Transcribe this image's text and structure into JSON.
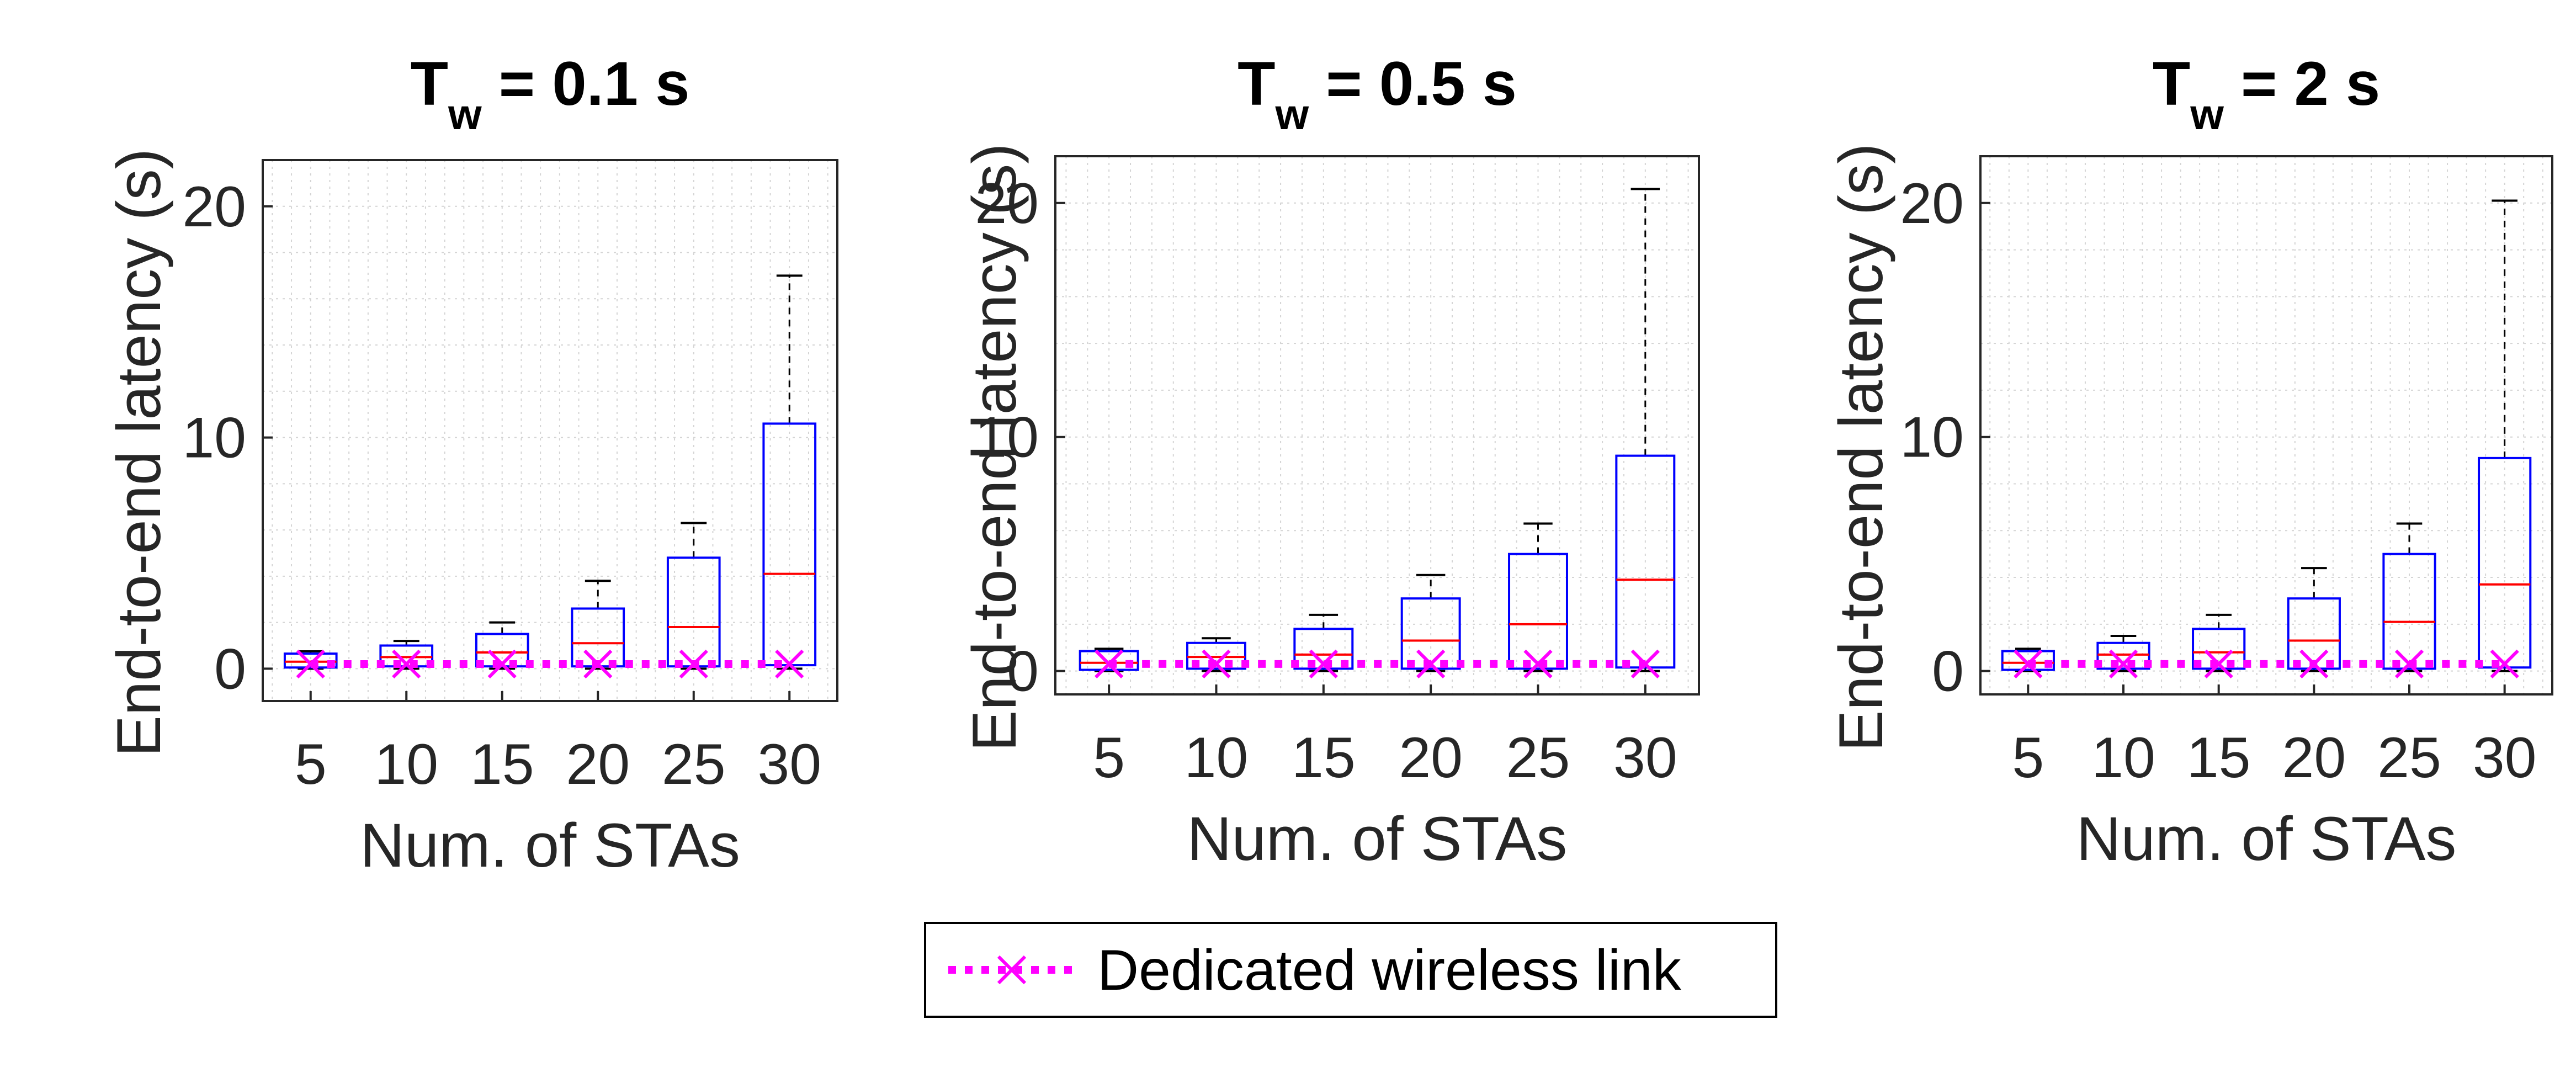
{
  "chart_data": [
    {
      "type": "box",
      "title_main": "T",
      "title_sub": "w",
      "title_rest": " = 0.1 s",
      "xlabel": "Num. of STAs",
      "ylabel": "End-to-end latency (s)",
      "categories": [
        "5",
        "10",
        "15",
        "20",
        "25",
        "30"
      ],
      "yticks": [
        "0",
        "10",
        "20"
      ],
      "ylim": [
        -1.4,
        22
      ],
      "grid": true,
      "boxes": [
        {
          "whisker_low": 0.0,
          "q1": 0.05,
          "median": 0.3,
          "q3": 0.65,
          "whisker_high": 0.75
        },
        {
          "whisker_low": 0.0,
          "q1": 0.1,
          "median": 0.5,
          "q3": 1.0,
          "whisker_high": 1.2
        },
        {
          "whisker_low": 0.0,
          "q1": 0.1,
          "median": 0.7,
          "q3": 1.5,
          "whisker_high": 2.0
        },
        {
          "whisker_low": 0.0,
          "q1": 0.1,
          "median": 1.1,
          "q3": 2.6,
          "whisker_high": 3.8
        },
        {
          "whisker_low": 0.0,
          "q1": 0.1,
          "median": 1.8,
          "q3": 4.8,
          "whisker_high": 6.3
        },
        {
          "whisker_low": 0.0,
          "q1": 0.15,
          "median": 4.1,
          "q3": 10.6,
          "whisker_high": 17.0
        }
      ],
      "dedicated_link": [
        0.2,
        0.2,
        0.2,
        0.2,
        0.2,
        0.2
      ]
    },
    {
      "type": "box",
      "title_main": "T",
      "title_sub": "w",
      "title_rest": " = 0.5 s",
      "xlabel": "Num. of STAs",
      "ylabel": "End-to-end latency (s)",
      "categories": [
        "5",
        "10",
        "15",
        "20",
        "25",
        "30"
      ],
      "yticks": [
        "0",
        "10",
        "20"
      ],
      "ylim": [
        -1.0,
        22
      ],
      "grid": true,
      "boxes": [
        {
          "whisker_low": 0.0,
          "q1": 0.05,
          "median": 0.35,
          "q3": 0.85,
          "whisker_high": 0.95
        },
        {
          "whisker_low": 0.0,
          "q1": 0.1,
          "median": 0.6,
          "q3": 1.2,
          "whisker_high": 1.4
        },
        {
          "whisker_low": 0.0,
          "q1": 0.1,
          "median": 0.7,
          "q3": 1.8,
          "whisker_high": 2.4
        },
        {
          "whisker_low": 0.0,
          "q1": 0.1,
          "median": 1.3,
          "q3": 3.1,
          "whisker_high": 4.1
        },
        {
          "whisker_low": 0.0,
          "q1": 0.1,
          "median": 2.0,
          "q3": 5.0,
          "whisker_high": 6.3
        },
        {
          "whisker_low": 0.0,
          "q1": 0.15,
          "median": 3.9,
          "q3": 9.2,
          "whisker_high": 20.6
        }
      ],
      "dedicated_link": [
        0.3,
        0.3,
        0.3,
        0.3,
        0.3,
        0.3
      ]
    },
    {
      "type": "box",
      "title_main": "T",
      "title_sub": "w",
      "title_rest": " = 2 s",
      "xlabel": "Num. of STAs",
      "ylabel": "End-to-end latency (s)",
      "categories": [
        "5",
        "10",
        "15",
        "20",
        "25",
        "30"
      ],
      "yticks": [
        "0",
        "10",
        "20"
      ],
      "ylim": [
        -1.0,
        22
      ],
      "grid": true,
      "boxes": [
        {
          "whisker_low": 0.0,
          "q1": 0.05,
          "median": 0.35,
          "q3": 0.85,
          "whisker_high": 0.95
        },
        {
          "whisker_low": 0.0,
          "q1": 0.1,
          "median": 0.7,
          "q3": 1.2,
          "whisker_high": 1.5
        },
        {
          "whisker_low": 0.0,
          "q1": 0.1,
          "median": 0.8,
          "q3": 1.8,
          "whisker_high": 2.4
        },
        {
          "whisker_low": 0.0,
          "q1": 0.1,
          "median": 1.3,
          "q3": 3.1,
          "whisker_high": 4.4
        },
        {
          "whisker_low": 0.0,
          "q1": 0.1,
          "median": 2.1,
          "q3": 5.0,
          "whisker_high": 6.3
        },
        {
          "whisker_low": 0.0,
          "q1": 0.15,
          "median": 3.7,
          "q3": 9.1,
          "whisker_high": 20.1
        }
      ],
      "dedicated_link": [
        0.3,
        0.3,
        0.3,
        0.3,
        0.3,
        0.3
      ]
    }
  ],
  "legend": {
    "label": "Dedicated wireless link",
    "placement": "bottom-center"
  },
  "colors": {
    "box": "#0000ff",
    "median": "#ff0000",
    "whisker": "#000000",
    "dedicated": "#ff00ff",
    "grid": "#d4d4d4",
    "axes": "#262626"
  }
}
